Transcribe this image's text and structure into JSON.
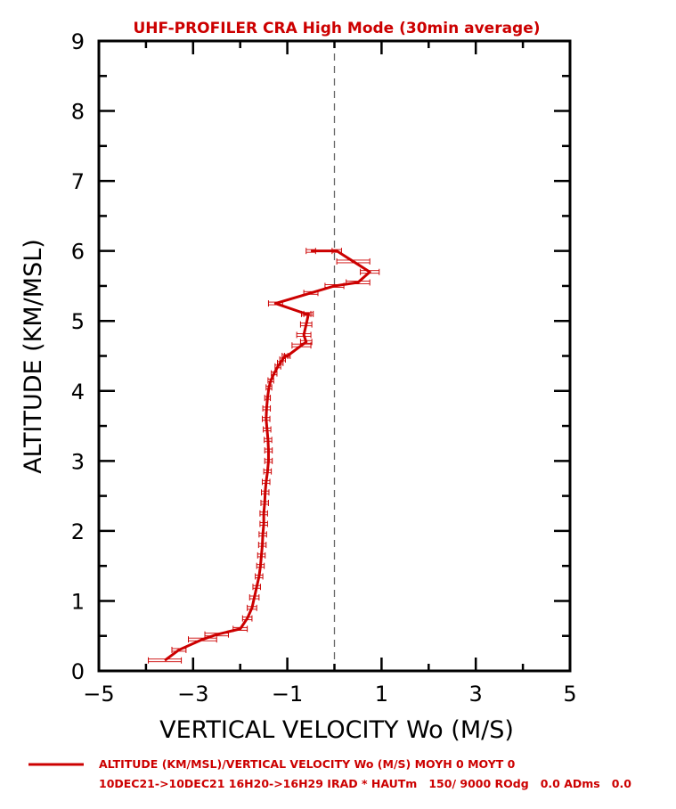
{
  "chart_data": {
    "type": "line",
    "title": "UHF-PROFILER CRA High Mode (30min average)",
    "xlabel": "VERTICAL VELOCITY Wo (M/S)",
    "ylabel": "ALTITUDE (KM/MSL)",
    "xlim": [
      -5,
      5
    ],
    "ylim": [
      0,
      9
    ],
    "x_ticks": [
      -5,
      -3,
      -1,
      1,
      3,
      5
    ],
    "x_tick_labels": [
      "−5",
      "−3",
      "−1",
      "1",
      "3",
      "5"
    ],
    "y_ticks": [
      0,
      1,
      2,
      3,
      4,
      5,
      6,
      7,
      8,
      9
    ],
    "y_tick_labels": [
      "0",
      "1",
      "2",
      "3",
      "4",
      "5",
      "6",
      "7",
      "8",
      "9"
    ],
    "reference_line_x": 0,
    "legend": {
      "position": "bottom",
      "line1": "ALTITUDE (KM/MSL)/VERTICAL VELOCITY Wo (M/S) MOYH 0 MOYT 0",
      "line2": "10DEC21->10DEC21 16H20->16H29 IRAD * HAUTm   150/ 9000 ROdg   0.0 ADms   0.0"
    },
    "series": [
      {
        "color": "#cc0000",
        "x": [
          -3.6,
          -3.3,
          -2.8,
          -2.5,
          -2.0,
          -1.85,
          -1.75,
          -1.7,
          -1.65,
          -1.6,
          -1.57,
          -1.55,
          -1.53,
          -1.52,
          -1.5,
          -1.5,
          -1.48,
          -1.47,
          -1.45,
          -1.42,
          -1.4,
          -1.4,
          -1.41,
          -1.43,
          -1.45,
          -1.44,
          -1.42,
          -1.39,
          -1.35,
          -1.28,
          -1.2,
          -1.15,
          -1.1,
          -1.05,
          -1.0,
          -0.7,
          -0.6,
          -0.65,
          -0.6,
          -0.55,
          -0.6,
          -1.25,
          -0.5,
          0.0,
          0.5,
          0.75,
          0.4,
          0.05,
          -0.5
        ],
        "y": [
          0.15,
          0.3,
          0.45,
          0.52,
          0.6,
          0.75,
          0.9,
          1.05,
          1.2,
          1.35,
          1.5,
          1.65,
          1.8,
          1.95,
          2.1,
          2.25,
          2.4,
          2.55,
          2.7,
          2.85,
          3.0,
          3.15,
          3.3,
          3.45,
          3.6,
          3.75,
          3.9,
          4.05,
          4.15,
          4.25,
          4.35,
          4.4,
          4.45,
          4.5,
          4.5,
          4.65,
          4.7,
          4.8,
          4.95,
          5.1,
          5.1,
          5.25,
          5.4,
          5.5,
          5.55,
          5.7,
          5.85,
          6.0,
          6.0
        ],
        "err": [
          0.35,
          0.15,
          0.3,
          0.25,
          0.15,
          0.1,
          0.1,
          0.1,
          0.08,
          0.08,
          0.08,
          0.08,
          0.08,
          0.08,
          0.08,
          0.08,
          0.08,
          0.08,
          0.08,
          0.08,
          0.08,
          0.08,
          0.08,
          0.08,
          0.08,
          0.08,
          0.06,
          0.06,
          0.06,
          0.06,
          0.06,
          0.06,
          0.06,
          0.06,
          0.06,
          0.2,
          0.12,
          0.15,
          0.12,
          0.1,
          0.1,
          0.15,
          0.15,
          0.2,
          0.25,
          0.2,
          0.35,
          0.1,
          0.1
        ]
      }
    ]
  }
}
